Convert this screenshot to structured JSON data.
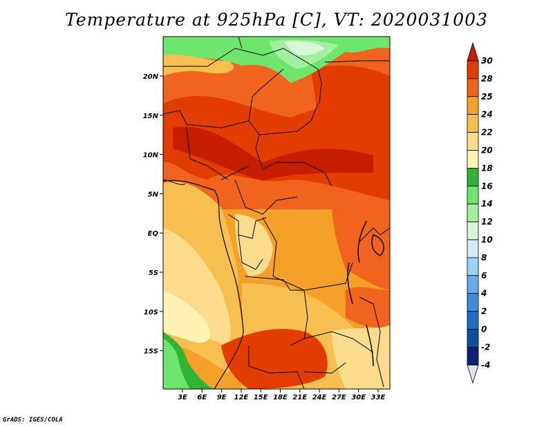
{
  "title": "Temperature at 925hPa [C], VT: 2020031003",
  "credit": "GrADS: IGES/COLA",
  "map": {
    "lat_labels": [
      "20N",
      "15N",
      "10N",
      "5N",
      "EQ",
      "5S",
      "10S",
      "15S"
    ],
    "lon_labels": [
      "3E",
      "6E",
      "9E",
      "12E",
      "15E",
      "18E",
      "21E",
      "24E",
      "27E",
      "30E",
      "33E"
    ]
  },
  "colorbar": {
    "labels": [
      "30",
      "28",
      "25",
      "24",
      "22",
      "20",
      "18",
      "16",
      "14",
      "12",
      "10",
      "8",
      "6",
      "4",
      "2",
      "0",
      "-2",
      "-4"
    ],
    "colors": [
      "#c81e00",
      "#e23c00",
      "#f0641e",
      "#f5a028",
      "#f7be50",
      "#fbdc8c",
      "#fff3b4",
      "#32b432",
      "#6ee66e",
      "#a0f0a0",
      "#d7f5d7",
      "#d2ebf5",
      "#96d2fa",
      "#64aaf0",
      "#3c8cdc",
      "#1e6ec8",
      "#0a50a0",
      "#0a2378",
      "#e1e1f5"
    ]
  }
}
